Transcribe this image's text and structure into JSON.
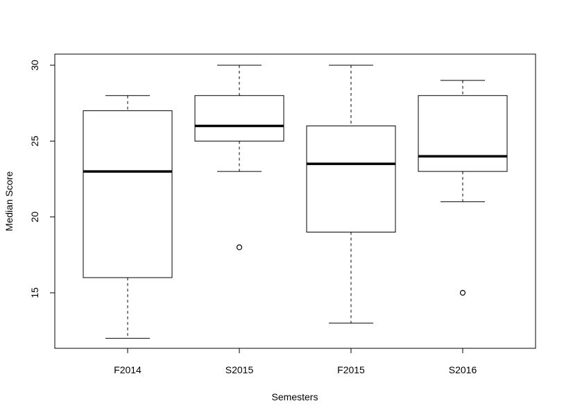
{
  "chart_data": {
    "type": "boxplot",
    "title": "",
    "xlabel": "Semesters",
    "ylabel": "Median Score",
    "ylim": [
      11,
      30.6
    ],
    "yticks": [
      15,
      20,
      25,
      30
    ],
    "categories": [
      "F2014",
      "S2015",
      "F2015",
      "S2016"
    ],
    "boxes": [
      {
        "name": "F2014",
        "whisker_low": 12,
        "q1": 16,
        "median": 23,
        "q3": 27,
        "whisker_high": 28,
        "outliers": []
      },
      {
        "name": "S2015",
        "whisker_low": 23,
        "q1": 25,
        "median": 26,
        "q3": 28,
        "whisker_high": 30,
        "outliers": [
          18
        ]
      },
      {
        "name": "F2015",
        "whisker_low": 13,
        "q1": 19,
        "median": 23.5,
        "q3": 26,
        "whisker_high": 30,
        "outliers": []
      },
      {
        "name": "S2016",
        "whisker_low": 21,
        "q1": 23,
        "median": 24,
        "q3": 28,
        "whisker_high": 29,
        "outliers": [
          15
        ]
      }
    ],
    "grid": false,
    "legend": "none"
  }
}
